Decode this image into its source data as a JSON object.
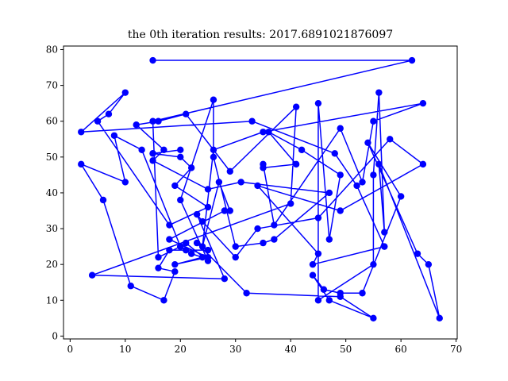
{
  "chart_data": {
    "type": "line",
    "title": "the 0th iteration results: 2017.6891021876097",
    "xlabel": "",
    "ylabel": "",
    "xlim": [
      -1.2,
      70.2
    ],
    "ylim": [
      -0.8,
      81
    ],
    "xticks": [
      0,
      10,
      20,
      30,
      40,
      50,
      60,
      70
    ],
    "yticks": [
      0,
      10,
      20,
      30,
      40,
      50,
      60,
      70,
      80
    ],
    "grid": false,
    "series": [
      {
        "color": "#0000ff",
        "marker": "circle",
        "x": [
          15,
          62,
          15,
          16,
          20,
          13,
          8,
          10,
          2,
          6,
          11,
          17,
          19,
          16,
          18,
          25,
          23,
          32,
          49,
          55,
          47,
          44,
          46,
          49,
          53,
          60,
          54,
          63,
          65,
          67,
          56,
          57,
          56,
          55,
          55,
          45,
          45,
          47,
          49,
          42,
          36,
          41,
          35,
          35,
          37,
          49,
          53,
          55,
          64,
          35,
          26,
          24,
          27,
          29,
          28,
          18,
          25,
          19,
          24,
          22,
          21,
          20,
          21,
          25,
          20,
          26,
          26,
          30,
          35,
          37,
          47,
          31,
          25,
          15,
          17,
          12,
          16,
          21,
          29,
          41,
          40,
          4,
          28,
          23,
          24,
          30,
          34,
          45,
          58,
          64,
          49,
          34,
          45,
          44,
          57,
          52,
          48,
          33,
          2,
          10,
          7,
          5,
          18,
          25,
          19,
          22,
          20,
          15,
          20,
          15
        ],
        "y": [
          77,
          77,
          60,
          22,
          25,
          52,
          56,
          43,
          48,
          38,
          14,
          10,
          18,
          19,
          24,
          24,
          26,
          12,
          11,
          5,
          10,
          17,
          13,
          12,
          12,
          39,
          54,
          23,
          20,
          5,
          48,
          29,
          68,
          45,
          20,
          10,
          65,
          27,
          45,
          52,
          57,
          48,
          47,
          48,
          31,
          58,
          43,
          60,
          65,
          57,
          52,
          25,
          43,
          35,
          35,
          27,
          22,
          20,
          22,
          23,
          24,
          25,
          26,
          21,
          38,
          66,
          50,
          25,
          26,
          27,
          40,
          43,
          41,
          49,
          52,
          59,
          60,
          62,
          46,
          64,
          37,
          17,
          16,
          34,
          32,
          22,
          30,
          33,
          55,
          48,
          35,
          42,
          23,
          20,
          25,
          42,
          51,
          60,
          57,
          68,
          62,
          60,
          31,
          36,
          42,
          47,
          50,
          51,
          52,
          51
        ]
      }
    ]
  }
}
